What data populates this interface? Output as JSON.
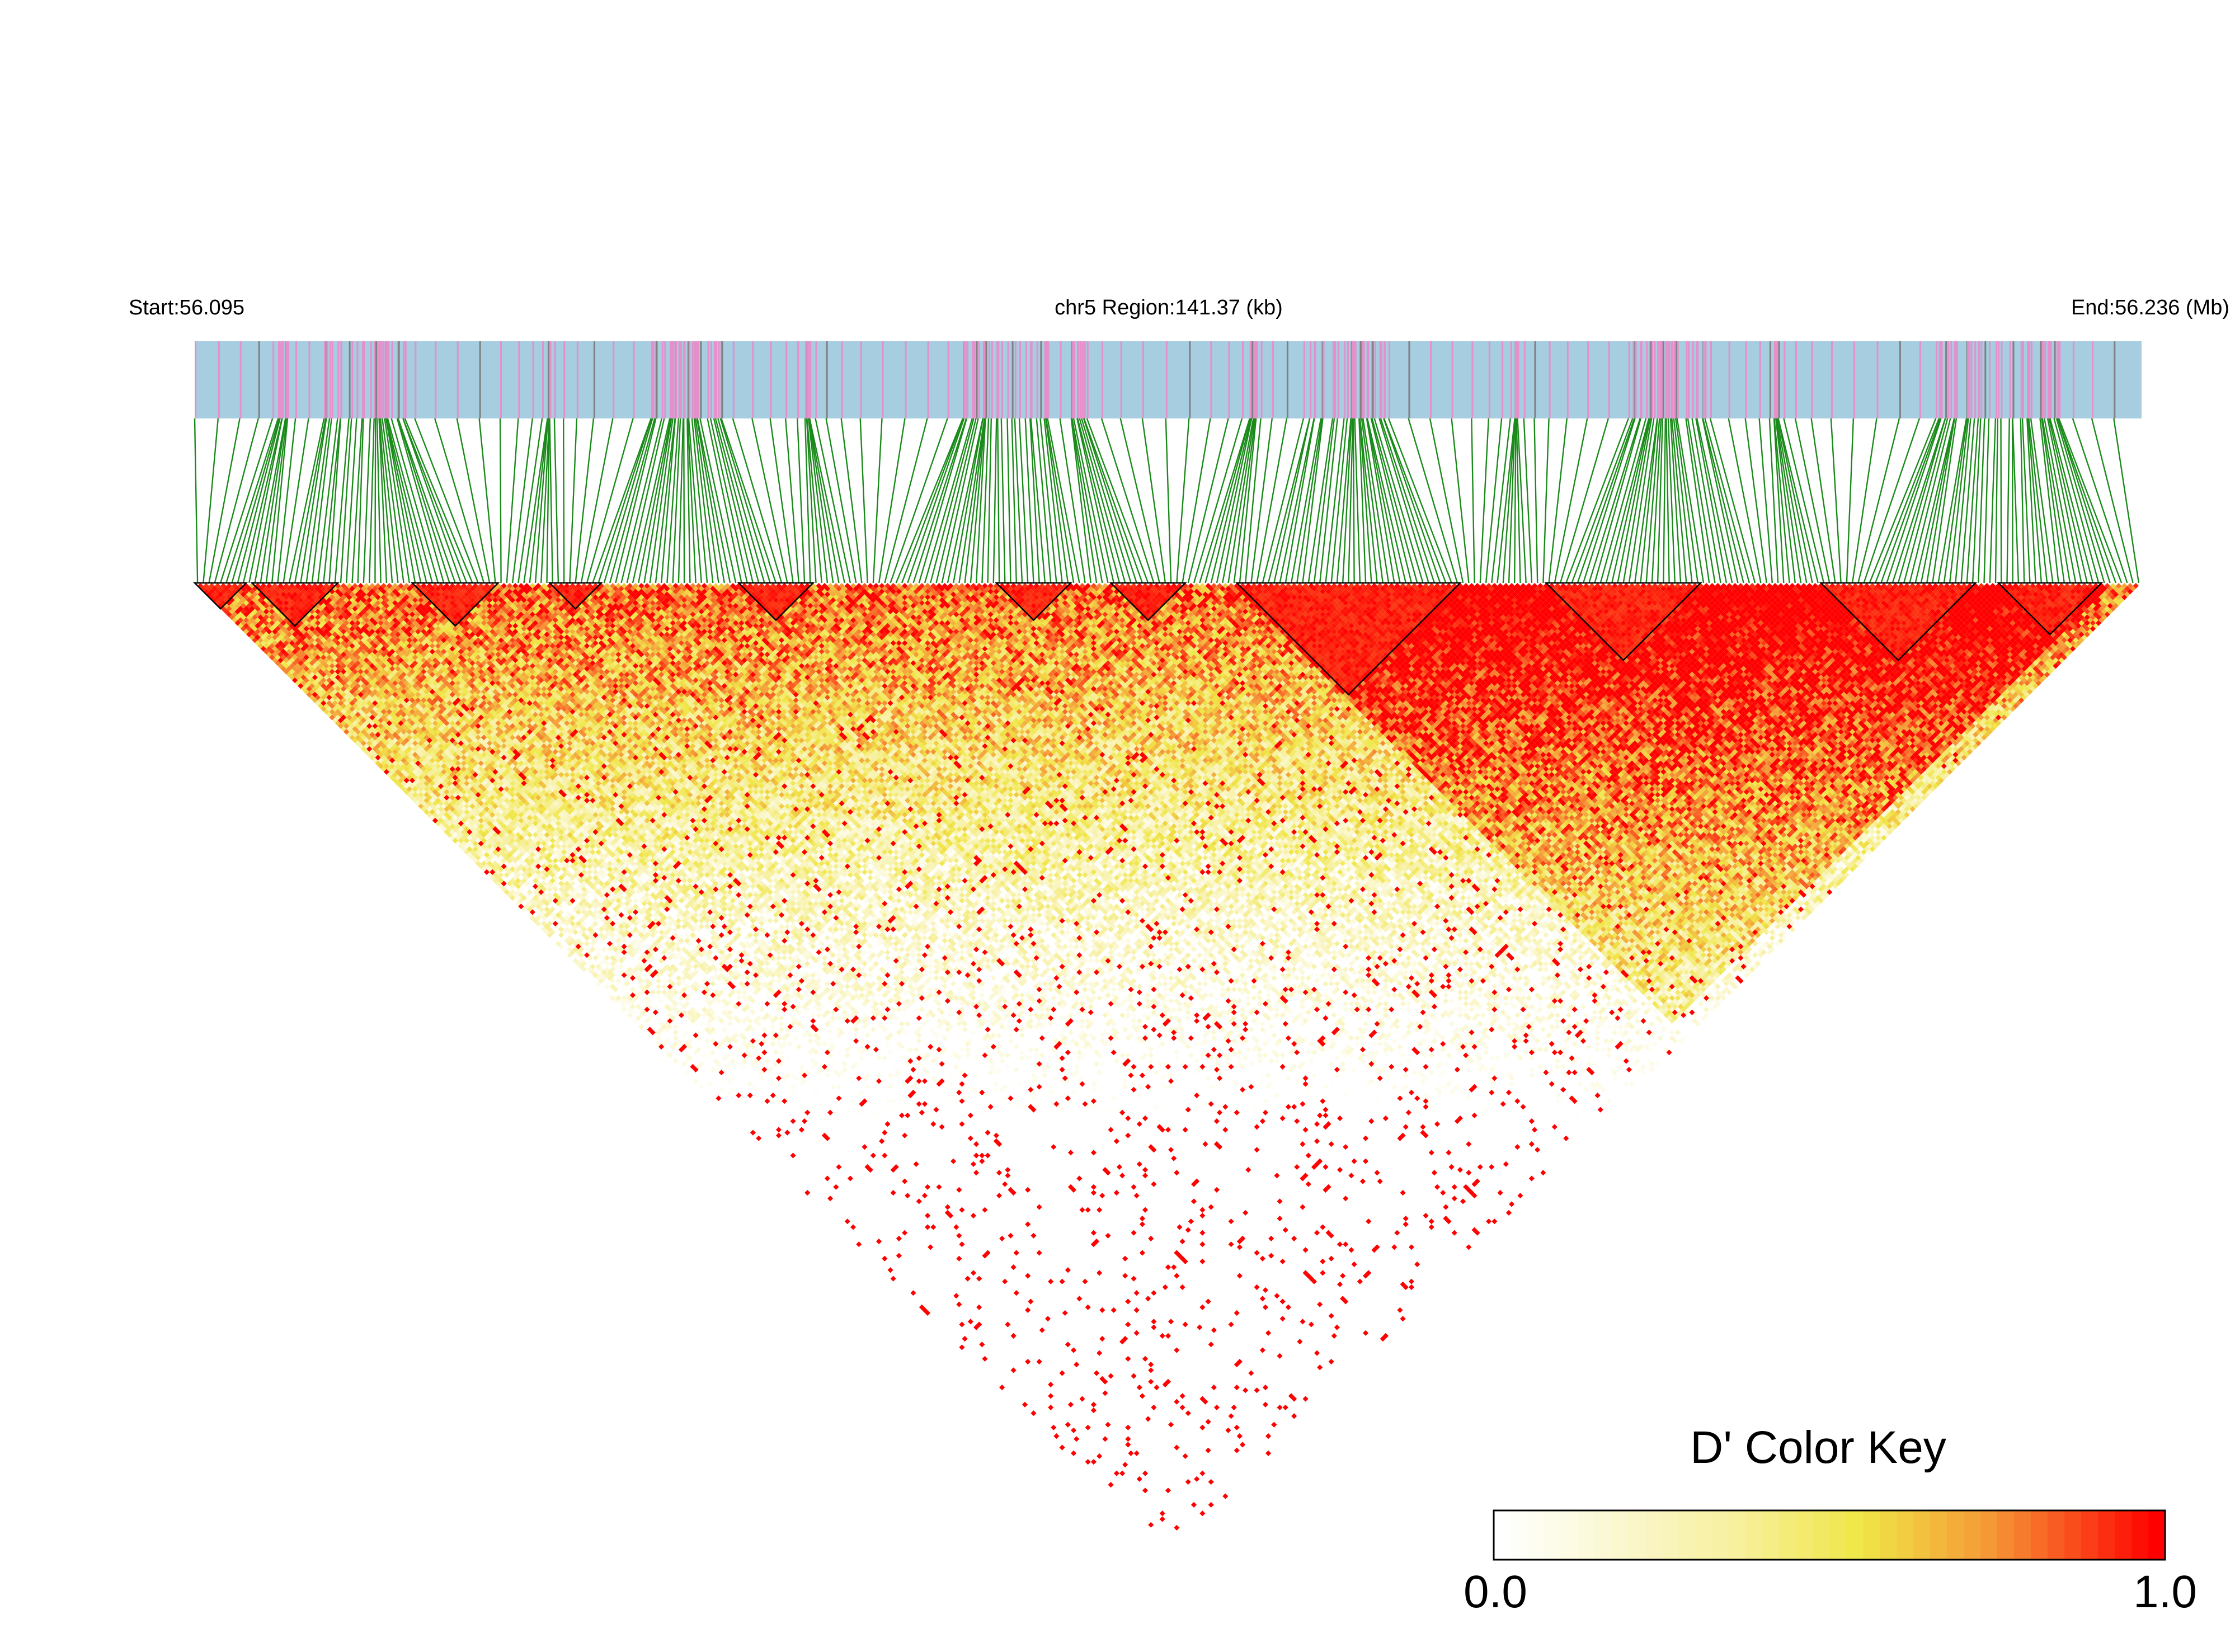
{
  "header": {
    "start_label": "Start:56.095",
    "region_label": "chr5 Region:141.37 (kb)",
    "end_label": "End:56.236 (Mb)"
  },
  "chart_data": {
    "type": "heatmap",
    "title": "",
    "chromosome": "chr5",
    "region_start_mb": 56.095,
    "region_end_mb": 56.236,
    "region_length_kb": 141.37,
    "colors": {
      "annotation_track": "#a6cde0",
      "snp_tick_primary": "#e58fcb",
      "snp_tick_secondary": "#808080",
      "connector_lines": "#1a8a1a",
      "block_outline": "#000000",
      "scale": [
        "#ffffff",
        "#f2e85a",
        "#f59a3a",
        "#ff0000"
      ]
    },
    "color_key": {
      "title": "D' Color Key",
      "min_label": "0.0",
      "max_label": "1.0",
      "min": 0.0,
      "max": 1.0
    },
    "ld_blocks_snp_ranges": [
      [
        0,
        8
      ],
      [
        10,
        24
      ],
      [
        38,
        52
      ],
      [
        62,
        70
      ],
      [
        95,
        107
      ],
      [
        140,
        152
      ],
      [
        160,
        172
      ],
      [
        182,
        220
      ],
      [
        236,
        262
      ],
      [
        284,
        310
      ],
      [
        315,
        332
      ]
    ]
  }
}
